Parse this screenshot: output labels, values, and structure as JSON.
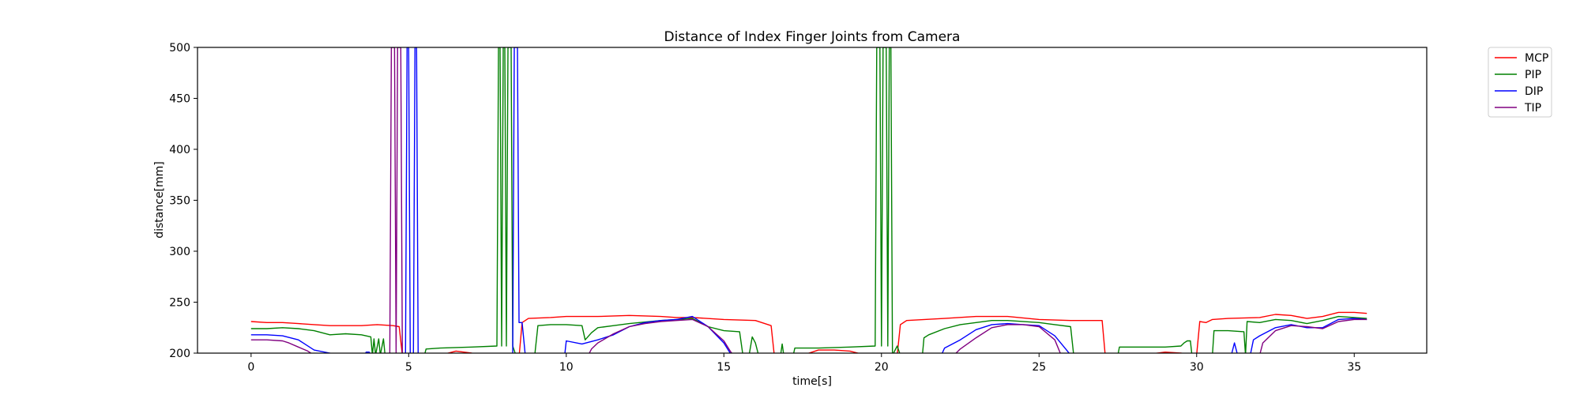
{
  "chart_data": {
    "type": "line",
    "title": "Distance of Index Finger Joints from Camera",
    "xlabel": "time[s]",
    "ylabel": "distance[mm]",
    "xlim": [
      -1.7,
      37.3
    ],
    "ylim": [
      200,
      500
    ],
    "xticks": [
      0,
      5,
      10,
      15,
      20,
      25,
      30,
      35
    ],
    "yticks": [
      200,
      250,
      300,
      350,
      400,
      450,
      500
    ],
    "grid": false,
    "legend_position": "outside-top-right",
    "series": [
      {
        "name": "MCP",
        "color": "#ff0000",
        "points": [
          [
            0,
            231
          ],
          [
            0.5,
            230
          ],
          [
            1,
            230
          ],
          [
            1.5,
            229
          ],
          [
            2,
            228
          ],
          [
            2.5,
            227
          ],
          [
            3,
            227
          ],
          [
            3.5,
            227
          ],
          [
            4,
            228
          ],
          [
            4.5,
            227
          ],
          [
            4.7,
            226
          ],
          [
            4.8,
            198
          ],
          [
            5.0,
            198
          ],
          [
            5.5,
            196
          ],
          [
            6.0,
            198
          ],
          [
            6.5,
            202
          ],
          [
            7.0,
            200
          ],
          [
            7.5,
            196
          ],
          [
            8.0,
            194
          ],
          [
            8.5,
            196
          ],
          [
            8.6,
            230
          ],
          [
            8.8,
            234
          ],
          [
            9.5,
            235
          ],
          [
            10,
            236
          ],
          [
            11,
            236
          ],
          [
            12,
            237
          ],
          [
            13,
            236
          ],
          [
            13.5,
            235
          ],
          [
            14,
            235
          ],
          [
            15,
            233
          ],
          [
            16,
            232
          ],
          [
            16.5,
            227
          ],
          [
            16.6,
            198
          ],
          [
            17.5,
            198
          ],
          [
            18,
            203
          ],
          [
            18.5,
            203
          ],
          [
            19,
            202
          ],
          [
            19.5,
            198
          ],
          [
            20.5,
            198
          ],
          [
            20.6,
            228
          ],
          [
            20.8,
            232
          ],
          [
            22,
            234
          ],
          [
            23,
            236
          ],
          [
            24,
            236
          ],
          [
            25,
            233
          ],
          [
            26,
            232
          ],
          [
            27,
            232
          ],
          [
            27.1,
            198
          ],
          [
            28,
            196
          ],
          [
            28.5,
            199
          ],
          [
            29,
            201
          ],
          [
            29.5,
            200
          ],
          [
            30,
            198
          ],
          [
            30.1,
            231
          ],
          [
            30.3,
            230
          ],
          [
            30.5,
            233
          ],
          [
            31,
            234
          ],
          [
            32,
            235
          ],
          [
            32.5,
            238
          ],
          [
            33,
            237
          ],
          [
            33.5,
            234
          ],
          [
            34,
            236
          ],
          [
            34.5,
            240
          ],
          [
            35,
            240
          ],
          [
            35.4,
            239
          ]
        ]
      },
      {
        "name": "PIP",
        "color": "#008000",
        "points": [
          [
            0,
            224
          ],
          [
            0.5,
            224
          ],
          [
            1,
            225
          ],
          [
            1.5,
            224
          ],
          [
            2,
            222
          ],
          [
            2.5,
            218
          ],
          [
            3,
            219
          ],
          [
            3.5,
            218
          ],
          [
            3.8,
            216
          ],
          [
            3.85,
            198
          ],
          [
            3.9,
            214
          ],
          [
            3.95,
            198
          ],
          [
            4.05,
            214
          ],
          [
            4.1,
            198
          ],
          [
            4.2,
            214
          ],
          [
            4.25,
            198
          ],
          [
            5.5,
            198
          ],
          [
            5.55,
            204
          ],
          [
            6,
            205
          ],
          [
            7,
            206
          ],
          [
            7.8,
            207
          ],
          [
            7.85,
            500
          ],
          [
            7.9,
            500
          ],
          [
            7.95,
            207
          ],
          [
            8.0,
            500
          ],
          [
            8.05,
            500
          ],
          [
            8.1,
            207
          ],
          [
            8.15,
            500
          ],
          [
            8.25,
            500
          ],
          [
            8.3,
            207
          ],
          [
            8.4,
            198
          ],
          [
            9.0,
            198
          ],
          [
            9.1,
            227
          ],
          [
            9.5,
            228
          ],
          [
            10,
            228
          ],
          [
            10.5,
            227
          ],
          [
            10.6,
            213
          ],
          [
            10.8,
            220
          ],
          [
            11,
            225
          ],
          [
            11.5,
            227
          ],
          [
            12,
            229
          ],
          [
            13,
            232
          ],
          [
            13.5,
            233
          ],
          [
            14,
            234
          ],
          [
            14.5,
            226
          ],
          [
            15,
            222
          ],
          [
            15.5,
            221
          ],
          [
            15.6,
            199
          ],
          [
            15.8,
            198
          ],
          [
            15.9,
            216
          ],
          [
            16.0,
            210
          ],
          [
            16.1,
            198
          ],
          [
            16.8,
            198
          ],
          [
            16.85,
            209
          ],
          [
            16.9,
            198
          ],
          [
            17.2,
            198
          ],
          [
            17.25,
            205
          ],
          [
            18,
            205
          ],
          [
            19,
            206
          ],
          [
            19.8,
            207
          ],
          [
            19.85,
            500
          ],
          [
            19.95,
            500
          ],
          [
            20.0,
            207
          ],
          [
            20.05,
            500
          ],
          [
            20.15,
            500
          ],
          [
            20.2,
            207
          ],
          [
            20.25,
            500
          ],
          [
            20.3,
            500
          ],
          [
            20.35,
            198
          ],
          [
            20.5,
            207
          ],
          [
            20.6,
            198
          ],
          [
            21.3,
            198
          ],
          [
            21.35,
            215
          ],
          [
            21.5,
            218
          ],
          [
            22,
            224
          ],
          [
            22.5,
            228
          ],
          [
            23,
            230
          ],
          [
            23.5,
            232
          ],
          [
            24,
            232
          ],
          [
            25,
            230
          ],
          [
            25.5,
            228
          ],
          [
            26,
            226
          ],
          [
            26.1,
            198
          ],
          [
            27.5,
            198
          ],
          [
            27.55,
            206
          ],
          [
            28,
            206
          ],
          [
            29,
            206
          ],
          [
            29.5,
            207
          ],
          [
            29.6,
            210
          ],
          [
            29.7,
            212
          ],
          [
            29.8,
            212
          ],
          [
            29.85,
            198
          ],
          [
            30.5,
            198
          ],
          [
            30.55,
            222
          ],
          [
            31,
            222
          ],
          [
            31.5,
            221
          ],
          [
            31.55,
            198
          ],
          [
            31.6,
            231
          ],
          [
            32,
            230
          ],
          [
            32.5,
            233
          ],
          [
            33,
            232
          ],
          [
            33.5,
            229
          ],
          [
            34,
            232
          ],
          [
            34.5,
            236
          ],
          [
            35,
            235
          ],
          [
            35.4,
            234
          ]
        ]
      },
      {
        "name": "DIP",
        "color": "#0000ff",
        "points": [
          [
            0,
            218
          ],
          [
            0.5,
            218
          ],
          [
            1,
            217
          ],
          [
            1.5,
            213
          ],
          [
            2,
            203
          ],
          [
            2.5,
            200
          ],
          [
            2.6,
            198
          ],
          [
            3.6,
            198
          ],
          [
            3.65,
            201
          ],
          [
            3.75,
            201
          ],
          [
            3.8,
            198
          ],
          [
            4.9,
            198
          ],
          [
            4.95,
            500
          ],
          [
            5.0,
            500
          ],
          [
            5.05,
            198
          ],
          [
            5.15,
            198
          ],
          [
            5.2,
            500
          ],
          [
            5.25,
            500
          ],
          [
            5.3,
            198
          ],
          [
            8.3,
            198
          ],
          [
            8.35,
            500
          ],
          [
            8.45,
            500
          ],
          [
            8.5,
            230
          ],
          [
            8.6,
            230
          ],
          [
            8.7,
            198
          ],
          [
            9.95,
            198
          ],
          [
            10.0,
            212
          ],
          [
            10.5,
            209
          ],
          [
            11,
            213
          ],
          [
            11.5,
            218
          ],
          [
            12,
            226
          ],
          [
            12.5,
            230
          ],
          [
            13,
            232
          ],
          [
            13.5,
            233
          ],
          [
            14,
            236
          ],
          [
            14.5,
            226
          ],
          [
            15,
            210
          ],
          [
            15.2,
            200
          ],
          [
            15.3,
            198
          ],
          [
            21.9,
            198
          ],
          [
            22,
            205
          ],
          [
            22.5,
            213
          ],
          [
            23,
            223
          ],
          [
            23.5,
            228
          ],
          [
            24,
            229
          ],
          [
            24.5,
            228
          ],
          [
            25,
            227
          ],
          [
            25.5,
            217
          ],
          [
            25.9,
            202
          ],
          [
            26.0,
            198
          ],
          [
            31.1,
            198
          ],
          [
            31.2,
            210
          ],
          [
            31.3,
            198
          ],
          [
            31.7,
            198
          ],
          [
            31.8,
            213
          ],
          [
            32,
            217
          ],
          [
            32.5,
            225
          ],
          [
            33,
            228
          ],
          [
            33.5,
            225
          ],
          [
            34,
            225
          ],
          [
            34.5,
            233
          ],
          [
            35,
            234
          ],
          [
            35.4,
            233
          ]
        ]
      },
      {
        "name": "TIP",
        "color": "#800080",
        "points": [
          [
            0,
            213
          ],
          [
            0.5,
            213
          ],
          [
            1,
            212
          ],
          [
            1.2,
            210
          ],
          [
            1.5,
            206
          ],
          [
            1.8,
            202
          ],
          [
            2.0,
            198
          ],
          [
            4.4,
            198
          ],
          [
            4.45,
            500
          ],
          [
            4.55,
            500
          ],
          [
            4.6,
            198
          ],
          [
            4.65,
            500
          ],
          [
            4.75,
            500
          ],
          [
            4.8,
            198
          ],
          [
            10.7,
            198
          ],
          [
            10.8,
            204
          ],
          [
            11,
            210
          ],
          [
            11.5,
            219
          ],
          [
            12,
            226
          ],
          [
            12.5,
            229
          ],
          [
            13,
            231
          ],
          [
            13.5,
            232
          ],
          [
            14,
            233
          ],
          [
            14.5,
            226
          ],
          [
            15,
            212
          ],
          [
            15.2,
            202
          ],
          [
            15.3,
            198
          ],
          [
            22.3,
            198
          ],
          [
            22.5,
            204
          ],
          [
            23,
            215
          ],
          [
            23.5,
            225
          ],
          [
            24,
            228
          ],
          [
            24.5,
            228
          ],
          [
            25,
            226
          ],
          [
            25.5,
            213
          ],
          [
            25.7,
            198
          ],
          [
            32.0,
            198
          ],
          [
            32.1,
            210
          ],
          [
            32.5,
            222
          ],
          [
            33,
            227
          ],
          [
            33.5,
            226
          ],
          [
            34,
            224
          ],
          [
            34.5,
            231
          ],
          [
            35,
            233
          ],
          [
            35.4,
            233
          ]
        ]
      }
    ]
  }
}
